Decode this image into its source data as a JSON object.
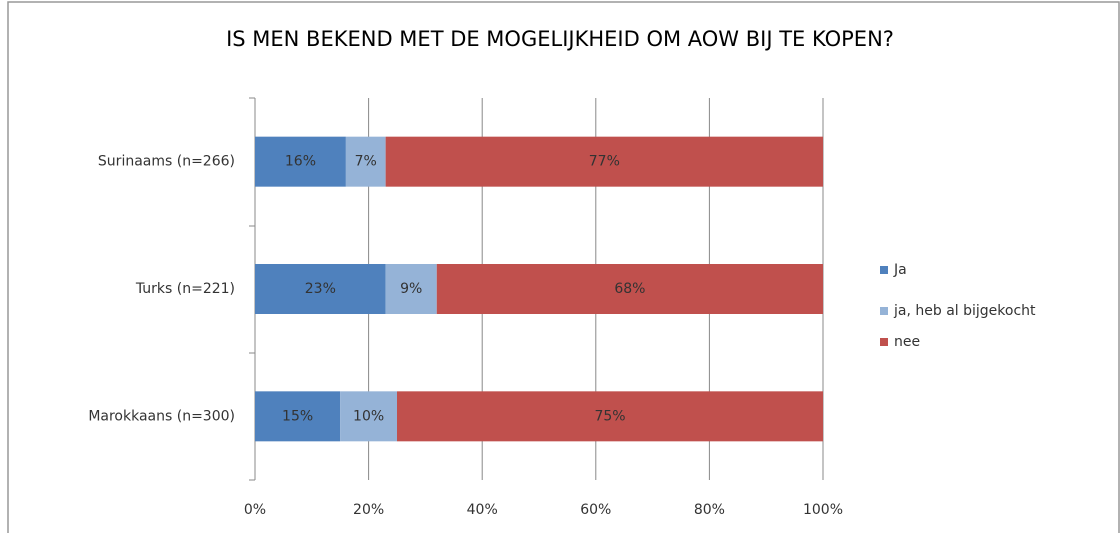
{
  "chart_data": {
    "type": "stacked-barh",
    "title": "IS MEN BEKEND MET DE MOGELIJKHEID OM AOW BIJ TE KOPEN?",
    "categories": [
      "Surinaams (n=266)",
      "Turks (n=221)",
      "Marokkaans (n=300)"
    ],
    "series": [
      {
        "name": "Ja",
        "color": "#4f81bd",
        "values": [
          16,
          23,
          15
        ],
        "value_labels": [
          "16%",
          "23%",
          "15%"
        ]
      },
      {
        "name": "ja, heb al bijgekocht",
        "color": "#95b3d7",
        "values": [
          7,
          9,
          10
        ],
        "value_labels": [
          "7%",
          "9%",
          "10%"
        ]
      },
      {
        "name": "nee",
        "color": "#c0504d",
        "values": [
          77,
          68,
          75
        ],
        "value_labels": [
          "77%",
          "68%",
          "75%"
        ]
      }
    ],
    "xlim": [
      0,
      100
    ],
    "xticks": [
      {
        "value": 0,
        "label": "0%"
      },
      {
        "value": 20,
        "label": "20%"
      },
      {
        "value": 40,
        "label": "40%"
      },
      {
        "value": 60,
        "label": "60%"
      },
      {
        "value": 80,
        "label": "80%"
      },
      {
        "value": 100,
        "label": "100%"
      }
    ],
    "grid": true,
    "legend": "right"
  }
}
